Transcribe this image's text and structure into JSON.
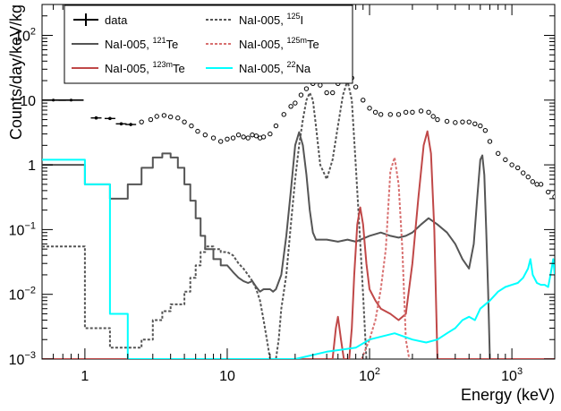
{
  "chart_data": {
    "type": "line",
    "xscale": "log",
    "yscale": "log",
    "xlim": [
      0.5,
      2000
    ],
    "ylim": [
      0.001,
      300
    ],
    "xlabel": "Energy (keV)",
    "ylabel": "Counts/day/keV/kg",
    "x_ticks": [
      {
        "value": 1,
        "label": "1"
      },
      {
        "value": 10,
        "label": "10"
      },
      {
        "value": 100,
        "label": "10",
        "exp": "2"
      },
      {
        "value": 1000,
        "label": "10",
        "exp": "3"
      }
    ],
    "y_ticks": [
      {
        "value": 0.001,
        "label": "10",
        "exp": "−3"
      },
      {
        "value": 0.01,
        "label": "10",
        "exp": "−2"
      },
      {
        "value": 0.1,
        "label": "10",
        "exp": "−1"
      },
      {
        "value": 1,
        "label": "1"
      },
      {
        "value": 10,
        "label": "10"
      },
      {
        "value": 100,
        "label": "10",
        "exp": "2"
      }
    ],
    "legend_position": "top-left",
    "legend": [
      {
        "id": "data",
        "pre": "data",
        "sup": "",
        "post": ""
      },
      {
        "id": "i125",
        "pre": "NaI-005, ",
        "sup": "125",
        "post": "I"
      },
      {
        "id": "te121",
        "pre": "NaI-005, ",
        "sup": "121",
        "post": "Te"
      },
      {
        "id": "te125m",
        "pre": "NaI-005, ",
        "sup": "125m",
        "post": "Te"
      },
      {
        "id": "te123m",
        "pre": "NaI-005, ",
        "sup": "123m",
        "post": "Te"
      },
      {
        "id": "na22",
        "pre": "NaI-005, ",
        "sup": "22",
        "post": "Na"
      }
    ],
    "series": [
      {
        "id": "data",
        "color": "#000000",
        "style": "points",
        "points": [
          [
            0.6,
            10
          ],
          [
            0.8,
            10
          ],
          [
            1.2,
            5.3
          ],
          [
            1.5,
            5.2
          ],
          [
            1.8,
            4.3
          ],
          [
            2.1,
            4.2
          ],
          [
            2.5,
            4.6
          ],
          [
            2.9,
            5.0
          ],
          [
            3.2,
            5.6
          ],
          [
            3.6,
            5.8
          ],
          [
            4,
            5.5
          ],
          [
            4.5,
            5.3
          ],
          [
            5,
            4.6
          ],
          [
            5.6,
            4.0
          ],
          [
            6.2,
            3.3
          ],
          [
            7,
            2.9
          ],
          [
            8,
            2.6
          ],
          [
            9,
            2.3
          ],
          [
            10,
            2.5
          ],
          [
            11,
            2.6
          ],
          [
            12,
            2.9
          ],
          [
            13,
            2.7
          ],
          [
            14,
            2.6
          ],
          [
            15,
            2.9
          ],
          [
            16,
            2.8
          ],
          [
            17,
            2.6
          ],
          [
            18,
            2.7
          ],
          [
            20,
            3.0
          ],
          [
            22,
            4.0
          ],
          [
            25,
            6.0
          ],
          [
            28,
            8.0
          ],
          [
            30,
            9.0
          ],
          [
            33,
            12
          ],
          [
            36,
            15
          ],
          [
            40,
            18
          ],
          [
            45,
            17
          ],
          [
            50,
            13
          ],
          [
            55,
            13
          ],
          [
            60,
            18
          ],
          [
            65,
            24
          ],
          [
            70,
            26
          ],
          [
            75,
            22
          ],
          [
            80,
            16
          ],
          [
            90,
            10
          ],
          [
            100,
            7.5
          ],
          [
            110,
            6.5
          ],
          [
            120,
            6.0
          ],
          [
            140,
            6.0
          ],
          [
            160,
            6.0
          ],
          [
            180,
            6.5
          ],
          [
            200,
            6.5
          ],
          [
            230,
            6.8
          ],
          [
            260,
            6.5
          ],
          [
            280,
            5.6
          ],
          [
            300,
            5.0
          ],
          [
            350,
            4.7
          ],
          [
            400,
            4.5
          ],
          [
            450,
            4.6
          ],
          [
            500,
            4.6
          ],
          [
            550,
            4.3
          ],
          [
            600,
            4.0
          ],
          [
            650,
            3.4
          ],
          [
            700,
            2.3
          ],
          [
            800,
            1.5
          ],
          [
            900,
            1.2
          ],
          [
            1000,
            1.0
          ],
          [
            1100,
            0.9
          ],
          [
            1200,
            0.75
          ],
          [
            1300,
            0.65
          ],
          [
            1400,
            0.55
          ],
          [
            1500,
            0.5
          ],
          [
            1600,
            0.5
          ],
          [
            1800,
            0.38
          ],
          [
            2000,
            0.32
          ]
        ]
      },
      {
        "id": "te121",
        "color": "#555555",
        "style": "solid",
        "points": [
          [
            0.5,
            1.0
          ],
          [
            1.0,
            1.0
          ],
          [
            1.0,
            0.5
          ],
          [
            1.5,
            0.5
          ],
          [
            1.5,
            0.3
          ],
          [
            2.0,
            0.3
          ],
          [
            2.0,
            0.5
          ],
          [
            2.5,
            0.5
          ],
          [
            2.5,
            0.9
          ],
          [
            3,
            0.9
          ],
          [
            3,
            1.3
          ],
          [
            3.5,
            1.3
          ],
          [
            3.5,
            1.5
          ],
          [
            4,
            1.5
          ],
          [
            4,
            1.3
          ],
          [
            4.5,
            1.3
          ],
          [
            4.5,
            0.9
          ],
          [
            5,
            0.9
          ],
          [
            5,
            0.5
          ],
          [
            5.5,
            0.5
          ],
          [
            5.5,
            0.28
          ],
          [
            6,
            0.28
          ],
          [
            6,
            0.15
          ],
          [
            6.5,
            0.15
          ],
          [
            6.5,
            0.08
          ],
          [
            7,
            0.08
          ],
          [
            7,
            0.05
          ],
          [
            8,
            0.05
          ],
          [
            8,
            0.035
          ],
          [
            9,
            0.035
          ],
          [
            9,
            0.028
          ],
          [
            10,
            0.028
          ],
          [
            11,
            0.022
          ],
          [
            12,
            0.018
          ],
          [
            13,
            0.016
          ],
          [
            14,
            0.015
          ],
          [
            15,
            0.016
          ],
          [
            16,
            0.013
          ],
          [
            17,
            0.011
          ],
          [
            18,
            0.012
          ],
          [
            19,
            0.012
          ],
          [
            20,
            0.012
          ],
          [
            21,
            0.011
          ],
          [
            22,
            0.012
          ],
          [
            24,
            0.02
          ],
          [
            26,
            0.08
          ],
          [
            28,
            0.4
          ],
          [
            30,
            2.0
          ],
          [
            32,
            3.2
          ],
          [
            34,
            2.0
          ],
          [
            36,
            0.7
          ],
          [
            38,
            0.2
          ],
          [
            40,
            0.09
          ],
          [
            42,
            0.07
          ],
          [
            50,
            0.07
          ],
          [
            60,
            0.065
          ],
          [
            70,
            0.07
          ],
          [
            80,
            0.065
          ],
          [
            100,
            0.08
          ],
          [
            120,
            0.09
          ],
          [
            140,
            0.08
          ],
          [
            160,
            0.075
          ],
          [
            180,
            0.08
          ],
          [
            200,
            0.09
          ],
          [
            230,
            0.12
          ],
          [
            260,
            0.15
          ],
          [
            300,
            0.12
          ],
          [
            350,
            0.09
          ],
          [
            400,
            0.06
          ],
          [
            450,
            0.035
          ],
          [
            500,
            0.025
          ],
          [
            540,
            0.06
          ],
          [
            570,
            0.3
          ],
          [
            600,
            1.2
          ],
          [
            620,
            1.4
          ],
          [
            640,
            0.7
          ],
          [
            660,
            0.1
          ],
          [
            680,
            0.012
          ],
          [
            700,
            0.001
          ]
        ]
      },
      {
        "id": "i125",
        "color": "#555555",
        "style": "dashed",
        "points": [
          [
            0.5,
            0.055
          ],
          [
            1.0,
            0.055
          ],
          [
            1.0,
            0.003
          ],
          [
            1.5,
            0.003
          ],
          [
            1.5,
            0.0015
          ],
          [
            2.5,
            0.0015
          ],
          [
            2.5,
            0.002
          ],
          [
            3,
            0.002
          ],
          [
            3,
            0.004
          ],
          [
            3.5,
            0.004
          ],
          [
            3.5,
            0.0055
          ],
          [
            4,
            0.0055
          ],
          [
            4,
            0.007
          ],
          [
            5,
            0.007
          ],
          [
            5,
            0.011
          ],
          [
            5.5,
            0.011
          ],
          [
            5.5,
            0.018
          ],
          [
            6,
            0.018
          ],
          [
            6,
            0.028
          ],
          [
            6.5,
            0.028
          ],
          [
            6.5,
            0.045
          ],
          [
            7,
            0.045
          ],
          [
            7,
            0.055
          ],
          [
            8,
            0.055
          ],
          [
            8,
            0.05
          ],
          [
            9,
            0.05
          ],
          [
            9,
            0.045
          ],
          [
            10,
            0.045
          ],
          [
            11,
            0.04
          ],
          [
            12,
            0.03
          ],
          [
            13,
            0.025
          ],
          [
            14,
            0.02
          ],
          [
            15,
            0.016
          ],
          [
            16,
            0.012
          ],
          [
            17,
            0.008
          ],
          [
            18,
            0.004
          ],
          [
            19,
            0.002
          ],
          [
            20,
            0.001
          ],
          [
            22,
            0.001
          ],
          [
            23,
            0.002
          ],
          [
            24,
            0.006
          ],
          [
            26,
            0.02
          ],
          [
            28,
            0.12
          ],
          [
            30,
            0.6
          ],
          [
            32,
            2.0
          ],
          [
            34,
            5.0
          ],
          [
            36,
            10
          ],
          [
            38,
            13
          ],
          [
            40,
            10
          ],
          [
            42,
            4
          ],
          [
            45,
            1.0
          ],
          [
            50,
            0.6
          ],
          [
            55,
            1.2
          ],
          [
            60,
            4
          ],
          [
            65,
            12
          ],
          [
            70,
            20
          ],
          [
            75,
            10
          ],
          [
            80,
            1.0
          ],
          [
            85,
            0.1
          ],
          [
            90,
            0.01
          ],
          [
            95,
            0.001
          ]
        ]
      },
      {
        "id": "te123m",
        "color": "#c04848",
        "style": "solid",
        "points": [
          [
            0.5,
            0.001
          ],
          [
            55,
            0.001
          ],
          [
            58,
            0.003
          ],
          [
            60,
            0.0045
          ],
          [
            63,
            0.002
          ],
          [
            66,
            0.001
          ],
          [
            72,
            0.001
          ],
          [
            75,
            0.003
          ],
          [
            78,
            0.02
          ],
          [
            82,
            0.12
          ],
          [
            86,
            0.22
          ],
          [
            90,
            0.12
          ],
          [
            95,
            0.03
          ],
          [
            100,
            0.012
          ],
          [
            110,
            0.008
          ],
          [
            120,
            0.006
          ],
          [
            140,
            0.005
          ],
          [
            160,
            0.004
          ],
          [
            180,
            0.005
          ],
          [
            200,
            0.03
          ],
          [
            220,
            0.3
          ],
          [
            240,
            2.0
          ],
          [
            255,
            3.3
          ],
          [
            270,
            1.5
          ],
          [
            285,
            0.1
          ],
          [
            300,
            0.001
          ],
          [
            2000,
            0.001
          ]
        ]
      },
      {
        "id": "te125m",
        "color": "#d87070",
        "style": "dashed",
        "points": [
          [
            88,
            0.001
          ],
          [
            100,
            0.002
          ],
          [
            110,
            0.004
          ],
          [
            120,
            0.012
          ],
          [
            130,
            0.05
          ],
          [
            140,
            0.8
          ],
          [
            150,
            1.3
          ],
          [
            160,
            0.5
          ],
          [
            170,
            0.05
          ],
          [
            180,
            0.002
          ],
          [
            190,
            0.001
          ]
        ]
      },
      {
        "id": "na22",
        "color": "#00ffff",
        "style": "solid",
        "points": [
          [
            0.5,
            1.2
          ],
          [
            1.0,
            1.2
          ],
          [
            1.0,
            0.5
          ],
          [
            1.5,
            0.5
          ],
          [
            1.5,
            0.005
          ],
          [
            2.0,
            0.005
          ],
          [
            2.0,
            0.001
          ],
          [
            30,
            0.001
          ],
          [
            50,
            0.0013
          ],
          [
            80,
            0.0015
          ],
          [
            100,
            0.002
          ],
          [
            150,
            0.0025
          ],
          [
            200,
            0.002
          ],
          [
            250,
            0.0018
          ],
          [
            300,
            0.002
          ],
          [
            350,
            0.0025
          ],
          [
            400,
            0.003
          ],
          [
            450,
            0.004
          ],
          [
            500,
            0.0045
          ],
          [
            550,
            0.004
          ],
          [
            600,
            0.006
          ],
          [
            700,
            0.008
          ],
          [
            800,
            0.011
          ],
          [
            900,
            0.013
          ],
          [
            1000,
            0.014
          ],
          [
            1100,
            0.015
          ],
          [
            1200,
            0.018
          ],
          [
            1300,
            0.025
          ],
          [
            1350,
            0.035
          ],
          [
            1400,
            0.02
          ],
          [
            1500,
            0.015
          ],
          [
            1600,
            0.014
          ],
          [
            1700,
            0.014
          ],
          [
            1800,
            0.013
          ],
          [
            1900,
            0.025
          ],
          [
            1950,
            0.035
          ],
          [
            2000,
            0.02
          ]
        ]
      }
    ]
  }
}
